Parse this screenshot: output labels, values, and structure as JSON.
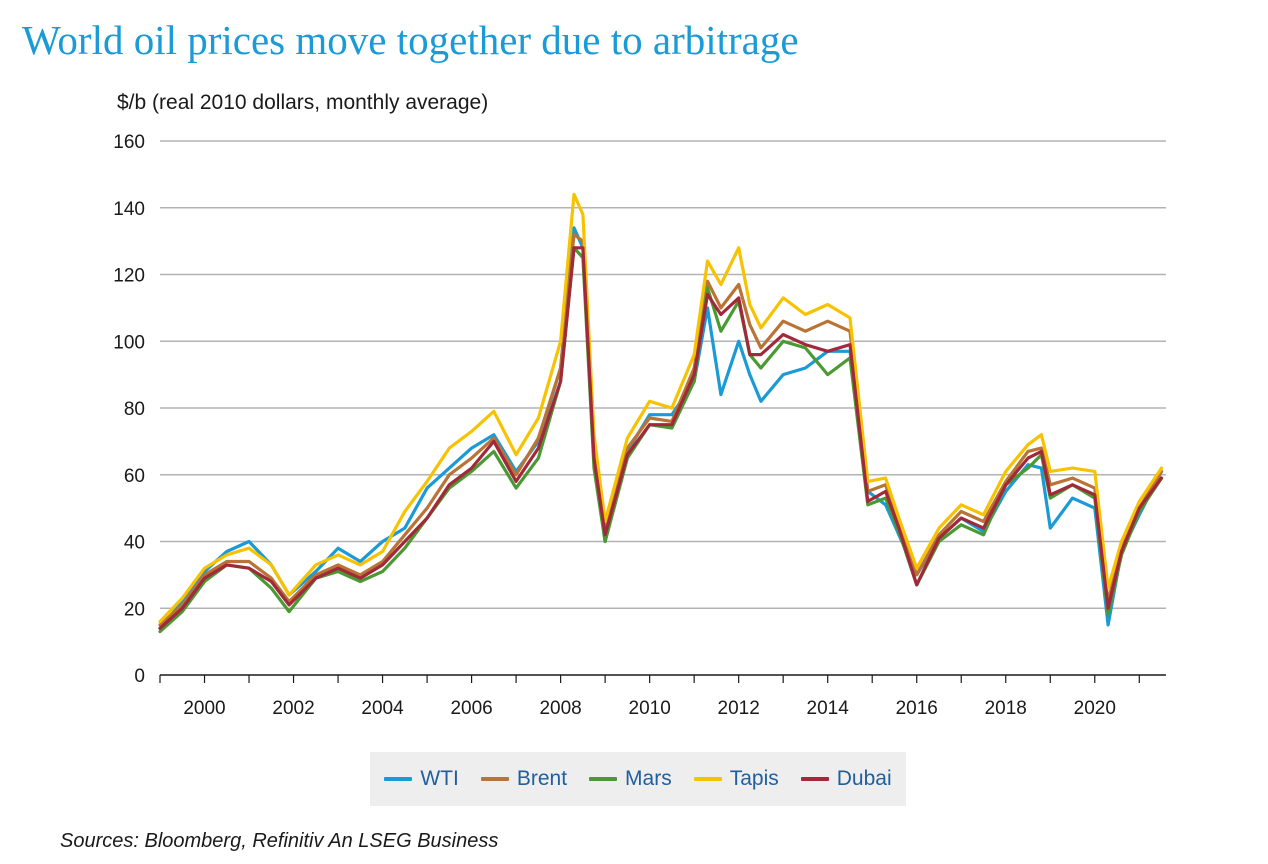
{
  "chart_data": {
    "type": "line",
    "title": "World oil prices move together due to arbitrage",
    "ylabel": "$/b (real 2010 dollars, monthly average)",
    "xlabel": "",
    "xlim": [
      1999,
      2021.6
    ],
    "ylim": [
      0,
      160
    ],
    "yticks": [
      0,
      20,
      40,
      60,
      80,
      100,
      120,
      140,
      160
    ],
    "xticks": [
      2000,
      2002,
      2004,
      2006,
      2008,
      2010,
      2012,
      2014,
      2016,
      2018,
      2020
    ],
    "grid": true,
    "legend_position": "bottom-center",
    "source": "Sources: Bloomberg, Refinitiv An LSEG Business",
    "x": [
      1999.0,
      1999.5,
      2000.0,
      2000.5,
      2001.0,
      2001.5,
      2001.9,
      2002.5,
      2003.0,
      2003.5,
      2004.0,
      2004.5,
      2005.0,
      2005.5,
      2006.0,
      2006.5,
      2007.0,
      2007.5,
      2008.0,
      2008.3,
      2008.5,
      2008.75,
      2009.0,
      2009.5,
      2010.0,
      2010.5,
      2011.0,
      2011.3,
      2011.6,
      2012.0,
      2012.25,
      2012.5,
      2013.0,
      2013.5,
      2014.0,
      2014.5,
      2014.9,
      2015.3,
      2015.6,
      2016.0,
      2016.5,
      2017.0,
      2017.5,
      2018.0,
      2018.5,
      2018.8,
      2019.0,
      2019.5,
      2020.0,
      2020.3,
      2020.6,
      2021.0,
      2021.5
    ],
    "series": [
      {
        "name": "WTI",
        "color": "#1a9ad6",
        "values": [
          14,
          22,
          31,
          37,
          40,
          33,
          24,
          31,
          38,
          34,
          40,
          44,
          56,
          62,
          68,
          72,
          61,
          70,
          92,
          134,
          128,
          65,
          40,
          67,
          78,
          78,
          88,
          110,
          84,
          100,
          90,
          82,
          90,
          92,
          97,
          97,
          55,
          51,
          42,
          30,
          41,
          47,
          43,
          55,
          63,
          62,
          44,
          53,
          50,
          15,
          37,
          48,
          61
        ]
      },
      {
        "name": "Brent",
        "color": "#b87335",
        "values": [
          15,
          21,
          30,
          34,
          34,
          29,
          22,
          30,
          33,
          30,
          34,
          42,
          50,
          60,
          65,
          71,
          60,
          71,
          92,
          132,
          130,
          66,
          44,
          68,
          77,
          76,
          92,
          118,
          110,
          117,
          105,
          98,
          106,
          103,
          106,
          103,
          55,
          57,
          45,
          30,
          42,
          49,
          46,
          58,
          67,
          68,
          57,
          59,
          56,
          22,
          38,
          50,
          61
        ]
      },
      {
        "name": "Mars",
        "color": "#4a9a33",
        "values": [
          13,
          19,
          28,
          33,
          32,
          26,
          19,
          29,
          31,
          28,
          31,
          38,
          47,
          56,
          61,
          67,
          56,
          65,
          88,
          128,
          125,
          62,
          40,
          65,
          75,
          74,
          88,
          116,
          103,
          112,
          96,
          92,
          100,
          98,
          90,
          95,
          51,
          53,
          43,
          27,
          40,
          45,
          42,
          57,
          62,
          66,
          53,
          57,
          53,
          18,
          36,
          49,
          59
        ]
      },
      {
        "name": "Tapis",
        "color": "#f7c200",
        "values": [
          16,
          23,
          32,
          36,
          38,
          33,
          24,
          33,
          36,
          33,
          37,
          49,
          58,
          68,
          73,
          79,
          66,
          77,
          100,
          144,
          138,
          72,
          46,
          71,
          82,
          80,
          96,
          124,
          117,
          128,
          111,
          104,
          113,
          108,
          111,
          107,
          58,
          59,
          47,
          32,
          44,
          51,
          48,
          61,
          69,
          72,
          61,
          62,
          61,
          26,
          40,
          52,
          62
        ]
      },
      {
        "name": "Dubai",
        "color": "#a1293a",
        "values": [
          14,
          20,
          29,
          33,
          32,
          28,
          21,
          29,
          32,
          29,
          33,
          40,
          47,
          57,
          62,
          70,
          58,
          68,
          88,
          128,
          128,
          65,
          42,
          66,
          75,
          75,
          90,
          114,
          108,
          113,
          96,
          96,
          102,
          99,
          97,
          99,
          52,
          55,
          44,
          27,
          41,
          47,
          44,
          57,
          65,
          67,
          54,
          57,
          54,
          20,
          37,
          50,
          59
        ]
      }
    ]
  }
}
